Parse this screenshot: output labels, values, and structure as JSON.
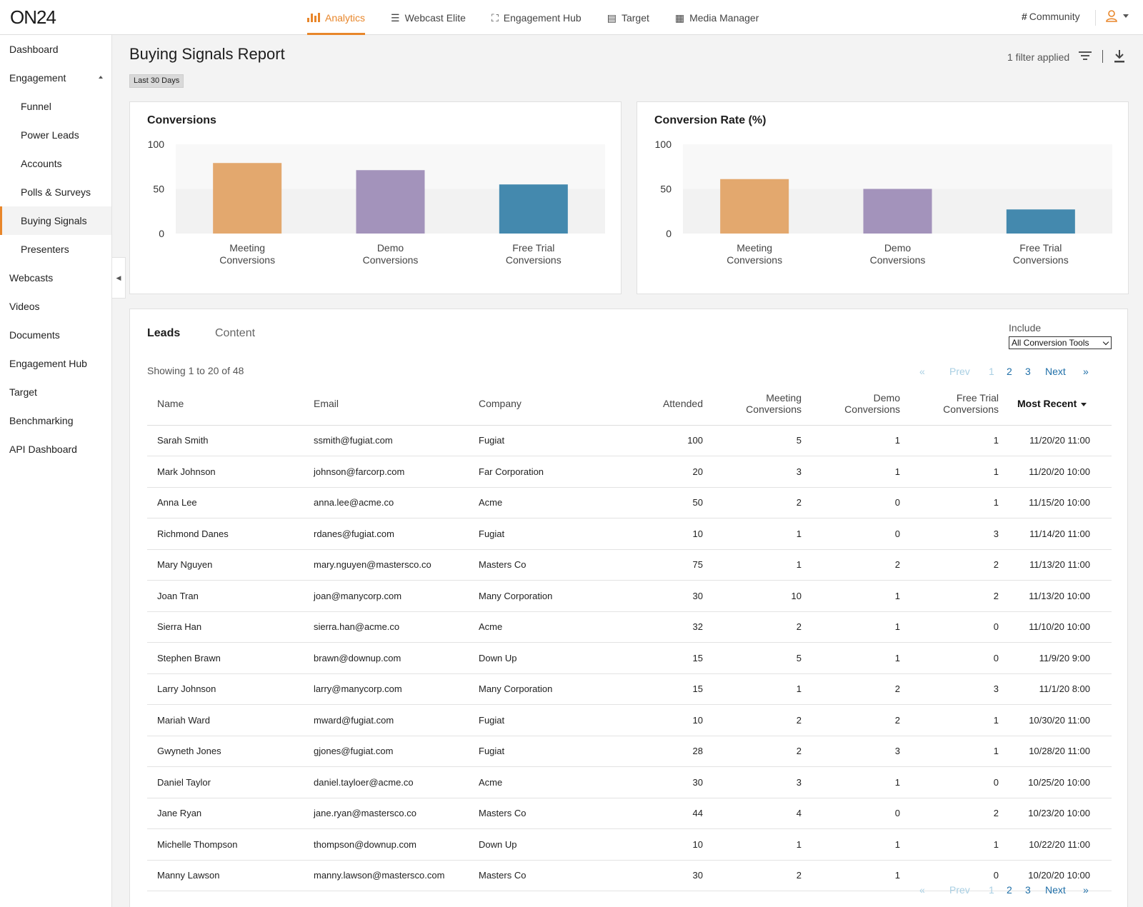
{
  "brand": {
    "logo": "ON24",
    "accent": "#e8862a",
    "link": "#1f6fa8"
  },
  "topnav": [
    {
      "label": "Analytics",
      "icon": "bar-chart-icon",
      "active": true
    },
    {
      "label": "Webcast Elite",
      "icon": "list-icon"
    },
    {
      "label": "Engagement Hub",
      "icon": "hub-icon"
    },
    {
      "label": "Target",
      "icon": "target-icon"
    },
    {
      "label": "Media Manager",
      "icon": "grid-icon"
    }
  ],
  "header_right": {
    "community": "Community",
    "user_icon": "user-icon"
  },
  "sidebar": {
    "items": [
      {
        "label": "Dashboard"
      },
      {
        "label": "Engagement",
        "expanded": true
      },
      {
        "label": "Funnel"
      },
      {
        "label": "Power Leads"
      },
      {
        "label": "Accounts"
      },
      {
        "label": "Polls & Surveys"
      },
      {
        "label": "Buying Signals",
        "active": true
      },
      {
        "label": "Presenters"
      },
      {
        "label": "Webcasts"
      },
      {
        "label": "Videos"
      },
      {
        "label": "Documents"
      },
      {
        "label": "Engagement Hub"
      },
      {
        "label": "Target"
      },
      {
        "label": "Benchmarking"
      },
      {
        "label": "API Dashboard"
      }
    ]
  },
  "page": {
    "title": "Buying Signals Report",
    "date_range": "Last 30 Days",
    "filter_status": "1 filter applied"
  },
  "chart_data": [
    {
      "type": "bar",
      "title": "Conversions",
      "categories": [
        "Meeting Conversions",
        "Demo Conversions",
        "Free Trial Conversions"
      ],
      "category_lines": [
        [
          "Meeting",
          "Conversions"
        ],
        [
          "Demo",
          "Conversions"
        ],
        [
          "Free Trial",
          "Conversions"
        ]
      ],
      "values": [
        79,
        71,
        55
      ],
      "colors": [
        "#e3a86e",
        "#a393bb",
        "#4489ae"
      ],
      "yticks": [
        0,
        50,
        100
      ],
      "ylim": [
        0,
        100
      ],
      "grid": true
    },
    {
      "type": "bar",
      "title": "Conversion Rate (%)",
      "categories": [
        "Meeting Conversions",
        "Demo Conversions",
        "Free Trial Conversions"
      ],
      "category_lines": [
        [
          "Meeting",
          "Conversions"
        ],
        [
          "Demo",
          "Conversions"
        ],
        [
          "Free Trial",
          "Conversions"
        ]
      ],
      "values": [
        61,
        50,
        27
      ],
      "colors": [
        "#e3a86e",
        "#a393bb",
        "#4489ae"
      ],
      "yticks": [
        0,
        50,
        100
      ],
      "ylim": [
        0,
        100
      ],
      "grid": true
    }
  ],
  "leads": {
    "tabs": {
      "active": "Leads",
      "inactive": "Content"
    },
    "include_label": "Include",
    "include_value": "All Conversion Tools",
    "showing": "Showing 1 to 20 of 48",
    "pager": {
      "first": "«",
      "prev": "Prev",
      "pages": [
        "1",
        "2",
        "3"
      ],
      "current": "1",
      "next": "Next",
      "last": "»"
    },
    "columns": {
      "name": "Name",
      "email": "Email",
      "company": "Company",
      "attended": "Attended",
      "meeting_l1": "Meeting",
      "meeting_l2": "Conversions",
      "demo_l1": "Demo",
      "demo_l2": "Conversions",
      "trial_l1": "Free Trial",
      "trial_l2": "Conversions",
      "recent": "Most Recent"
    },
    "rows": [
      {
        "name": "Sarah Smith",
        "email": "ssmith@fugiat.com",
        "company": "Fugiat",
        "attended": "100",
        "meeting": "5",
        "demo": "1",
        "trial": "1",
        "recent": "11/20/20 11:00"
      },
      {
        "name": "Mark Johnson",
        "email": "johnson@farcorp.com",
        "company": "Far Corporation",
        "attended": "20",
        "meeting": "3",
        "demo": "1",
        "trial": "1",
        "recent": "11/20/20 10:00"
      },
      {
        "name": "Anna Lee",
        "email": "anna.lee@acme.co",
        "company": "Acme",
        "attended": "50",
        "meeting": "2",
        "demo": "0",
        "trial": "1",
        "recent": "11/15/20 10:00"
      },
      {
        "name": "Richmond Danes",
        "email": "rdanes@fugiat.com",
        "company": "Fugiat",
        "attended": "10",
        "meeting": "1",
        "demo": "0",
        "trial": "3",
        "recent": "11/14/20 11:00"
      },
      {
        "name": "Mary Nguyen",
        "email": "mary.nguyen@mastersco.co",
        "company": "Masters Co",
        "attended": "75",
        "meeting": "1",
        "demo": "2",
        "trial": "2",
        "recent": "11/13/20 11:00"
      },
      {
        "name": "Joan Tran",
        "email": "joan@manycorp.com",
        "company": "Many Corporation",
        "attended": "30",
        "meeting": "10",
        "demo": "1",
        "trial": "2",
        "recent": "11/13/20 10:00"
      },
      {
        "name": "Sierra Han",
        "email": "sierra.han@acme.co",
        "company": "Acme",
        "attended": "32",
        "meeting": "2",
        "demo": "1",
        "trial": "0",
        "recent": "11/10/20 10:00"
      },
      {
        "name": "Stephen Brawn",
        "email": "brawn@downup.com",
        "company": "Down Up",
        "attended": "15",
        "meeting": "5",
        "demo": "1",
        "trial": "0",
        "recent": "11/9/20 9:00"
      },
      {
        "name": "Larry Johnson",
        "email": "larry@manycorp.com",
        "company": "Many Corporation",
        "attended": "15",
        "meeting": "1",
        "demo": "2",
        "trial": "3",
        "recent": "11/1/20 8:00"
      },
      {
        "name": "Mariah Ward",
        "email": "mward@fugiat.com",
        "company": "Fugiat",
        "attended": "10",
        "meeting": "2",
        "demo": "2",
        "trial": "1",
        "recent": "10/30/20 11:00"
      },
      {
        "name": "Gwyneth Jones",
        "email": "gjones@fugiat.com",
        "company": "Fugiat",
        "attended": "28",
        "meeting": "2",
        "demo": "3",
        "trial": "1",
        "recent": "10/28/20 11:00"
      },
      {
        "name": "Daniel Taylor",
        "email": "daniel.tayloer@acme.co",
        "company": "Acme",
        "attended": "30",
        "meeting": "3",
        "demo": "1",
        "trial": "0",
        "recent": "10/25/20 10:00"
      },
      {
        "name": "Jane Ryan",
        "email": "jane.ryan@mastersco.co",
        "company": "Masters Co",
        "attended": "44",
        "meeting": "4",
        "demo": "0",
        "trial": "2",
        "recent": "10/23/20 10:00"
      },
      {
        "name": "Michelle Thompson",
        "email": "thompson@downup.com",
        "company": "Down Up",
        "attended": "10",
        "meeting": "1",
        "demo": "1",
        "trial": "1",
        "recent": "10/22/20 11:00"
      },
      {
        "name": "Manny Lawson",
        "email": "manny.lawson@mastersco.com",
        "company": "Masters Co",
        "attended": "30",
        "meeting": "2",
        "demo": "1",
        "trial": "0",
        "recent": "10/20/20 10:00"
      }
    ]
  }
}
